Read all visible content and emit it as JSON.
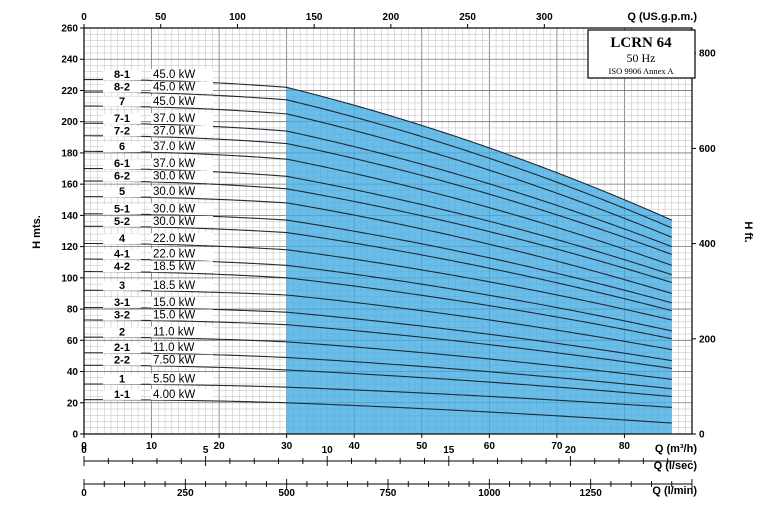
{
  "chart_data": {
    "type": "line",
    "title": "LCRN 64",
    "subtitle": "50 Hz",
    "standard": "ISO 9906 Annex A",
    "ylabel": "H mts.",
    "ylabel_right": "H ft.",
    "xlabel": "Q (m³/h)",
    "xlabel_top": "Q (US.g.p.m.)",
    "xlabel_2": "Q (l/sec)",
    "xlabel_3": "Q (l/min)",
    "xlim": [
      0,
      90
    ],
    "ylim": [
      0,
      260
    ],
    "x_ticks": [
      "0",
      "10",
      "20",
      "30",
      "40",
      "50",
      "60",
      "70",
      "80"
    ],
    "y_ticks": [
      "0",
      "20",
      "40",
      "60",
      "80",
      "100",
      "120",
      "140",
      "160",
      "180",
      "200",
      "220",
      "240",
      "260"
    ],
    "top_ticks": [
      "0",
      "50",
      "100",
      "150",
      "200",
      "250",
      "300"
    ],
    "top_tick_values": [
      0,
      50,
      100,
      150,
      200,
      250,
      300
    ],
    "ft_ticks": [
      "0",
      "200",
      "400",
      "600",
      "800"
    ],
    "ft_tick_values": [
      0,
      200,
      400,
      600,
      800
    ],
    "ls_ticks": [
      "0",
      "5",
      "10",
      "15",
      "20"
    ],
    "ls_tick_values": [
      0,
      5,
      10,
      15,
      20
    ],
    "lm_ticks": [
      "0",
      "250",
      "500",
      "750",
      "1000",
      "1250"
    ],
    "lm_tick_values": [
      0,
      250,
      500,
      750,
      1000,
      1250
    ],
    "grid": true,
    "recommended_range": [
      30,
      87
    ],
    "curve_x_end": 87,
    "series": [
      {
        "name": "8-1",
        "power": "45.0 kW",
        "h0": 227,
        "h30": 222,
        "hend": 137
      },
      {
        "name": "8-2",
        "power": "45.0 kW",
        "h0": 219,
        "h30": 214,
        "hend": 132
      },
      {
        "name": "7",
        "power": "45.0 kW",
        "h0": 210,
        "h30": 205,
        "hend": 126
      },
      {
        "name": "7-1",
        "power": "37.0 kW",
        "h0": 199,
        "h30": 194,
        "hend": 120
      },
      {
        "name": "7-2",
        "power": "37.0 kW",
        "h0": 191,
        "h30": 186,
        "hend": 115
      },
      {
        "name": "6",
        "power": "37.0 kW",
        "h0": 181,
        "h30": 176,
        "hend": 108
      },
      {
        "name": "6-1",
        "power": "37.0 kW",
        "h0": 170,
        "h30": 165,
        "hend": 102
      },
      {
        "name": "6-2",
        "power": "30.0 kW",
        "h0": 162,
        "h30": 157,
        "hend": 97
      },
      {
        "name": "5",
        "power": "30.0 kW",
        "h0": 152,
        "h30": 148,
        "hend": 90
      },
      {
        "name": "5-1",
        "power": "30.0 kW",
        "h0": 141,
        "h30": 137,
        "hend": 84
      },
      {
        "name": "5-2",
        "power": "30.0 kW",
        "h0": 133,
        "h30": 129,
        "hend": 79
      },
      {
        "name": "4",
        "power": "22.0 kW",
        "h0": 122,
        "h30": 118,
        "hend": 73
      },
      {
        "name": "4-1",
        "power": "22.0 kW",
        "h0": 112,
        "h30": 108,
        "hend": 66
      },
      {
        "name": "4-2",
        "power": "18.5 kW",
        "h0": 104,
        "h30": 100,
        "hend": 61
      },
      {
        "name": "3",
        "power": "18.5 kW",
        "h0": 92,
        "h30": 89,
        "hend": 54
      },
      {
        "name": "3-1",
        "power": "15.0 kW",
        "h0": 81,
        "h30": 78,
        "hend": 47
      },
      {
        "name": "3-2",
        "power": "15.0 kW",
        "h0": 73,
        "h30": 70,
        "hend": 42
      },
      {
        "name": "2",
        "power": "11.0 kW",
        "h0": 62,
        "h30": 59,
        "hend": 35
      },
      {
        "name": "2-1",
        "power": "11.0 kW",
        "h0": 52,
        "h30": 49,
        "hend": 29
      },
      {
        "name": "2-2",
        "power": "7.50 kW",
        "h0": 44,
        "h30": 41,
        "hend": 24
      },
      {
        "name": "1",
        "power": "5.50 kW",
        "h0": 32,
        "h30": 30,
        "hend": 17
      },
      {
        "name": "1-1",
        "power": "4.00 kW",
        "h0": 22,
        "h30": 20,
        "hend": 7
      }
    ]
  }
}
